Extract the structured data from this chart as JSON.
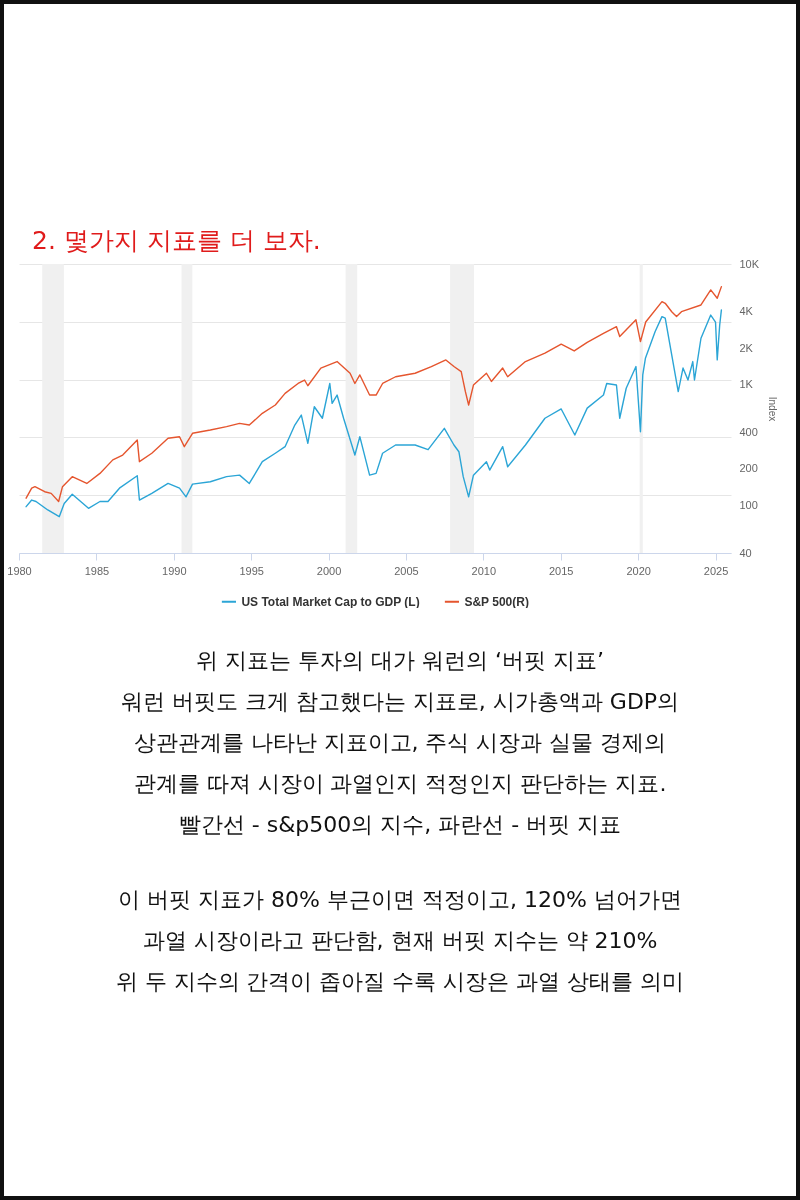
{
  "chart_data": {
    "type": "line",
    "title": "2. 몇가지 지표를 더 보자.",
    "ylabel": "Index",
    "xlim": [
      1980,
      2026
    ],
    "xticks": [
      1980,
      1985,
      1990,
      1995,
      2000,
      2005,
      2010,
      2015,
      2020,
      2025
    ],
    "ylim": [
      40,
      10000
    ],
    "yticks": [
      40,
      100,
      {
        "value": 121,
        "label": null
      },
      200,
      {
        "value": 364,
        "label": null
      },
      400,
      {
        "value": 1000,
        "label": "1K"
      },
      {
        "value": 1099,
        "label": null
      },
      {
        "value": 2000,
        "label": "2K"
      },
      {
        "value": 3315,
        "label": null
      },
      {
        "value": 4000,
        "label": "4K"
      },
      {
        "value": 10000,
        "label": "10K"
      }
    ],
    "log": true,
    "grid": "y",
    "legend": "bottom",
    "bands": [
      {
        "axis": "x",
        "from": 1981.5,
        "to": 1982.9,
        "color": "#f0f0f0"
      },
      {
        "axis": "x",
        "from": 1990.5,
        "to": 1991.2,
        "color": "#f0f0f0"
      },
      {
        "axis": "x",
        "from": 2001.1,
        "to": 2001.85,
        "color": "#f0f0f0"
      },
      {
        "axis": "x",
        "from": 2007.85,
        "to": 2009.4,
        "color": "#f0f0f0"
      },
      {
        "axis": "x",
        "from": 2020.1,
        "to": 2020.3,
        "color": "#f0f0f0"
      }
    ],
    "series": [
      {
        "name": "US Total Market Cap to GDP (L)",
        "color": "#2ba5d6",
        "x": [
          1980.46,
          1980.82,
          1981.1,
          1981.86,
          1982.6,
          1982.92,
          1983.44,
          1984.49,
          1985.23,
          1985.75,
          1986.49,
          1987.64,
          1987.78,
          1988.58,
          1989.63,
          1990.37,
          1990.79,
          1991.21,
          1992.36,
          1993.41,
          1994.25,
          1994.88,
          1995.72,
          1996.56,
          1997.19,
          1997.82,
          1998.24,
          1998.66,
          1999.08,
          1999.6,
          2000.08,
          2000.23,
          2000.55,
          2000.97,
          2001.7,
          2002.02,
          2002.65,
          2003.07,
          2003.49,
          2004.33,
          2005.59,
          2006.43,
          2007.48,
          2008.1,
          2008.42,
          2008.7,
          2009.05,
          2009.36,
          2010.2,
          2010.41,
          2011.25,
          2011.57,
          2012.72,
          2013.98,
          2015.03,
          2015.91,
          2016.71,
          2017.76,
          2017.97,
          2018.6,
          2018.81,
          2019.23,
          2019.86,
          2020.15,
          2020.3,
          2020.47,
          2021.1,
          2021.54,
          2021.75,
          2022.17,
          2022.59,
          2022.9,
          2023.22,
          2023.53,
          2023.64,
          2024.06,
          2024.69,
          2025.0,
          2025.11,
          2025.27,
          2025.38
        ],
        "values": [
          97,
          110,
          107,
          91,
          80,
          103,
          123,
          94,
          107,
          107,
          138,
          175,
          110,
          125,
          151,
          138,
          117,
          149,
          156,
          172,
          177,
          151,
          229,
          269,
          305,
          461,
          558,
          325,
          654,
          525,
          1020,
          698,
          818,
          525,
          260,
          369,
          177,
          183,
          269,
          315,
          315,
          288,
          433,
          315,
          277,
          172,
          117,
          177,
          229,
          195,
          305,
          208,
          315,
          525,
          627,
          381,
          637,
          818,
          1020,
          990,
          525,
          931,
          1410,
          406,
          1200,
          1650,
          2750,
          3660,
          3550,
          1760,
          873,
          1370,
          1090,
          1550,
          1090,
          2420,
          3770,
          3300,
          1600,
          3120,
          4160
        ]
      },
      {
        "name": "S&P 500(R)",
        "color": "#e5552e",
        "x": [
          1980.46,
          1980.82,
          1981.03,
          1981.66,
          1982.08,
          1982.56,
          1982.81,
          1983.44,
          1984.38,
          1985.23,
          1986.06,
          1986.7,
          1987.64,
          1987.78,
          1988.58,
          1989.63,
          1990.37,
          1990.68,
          1991.21,
          1992.36,
          1993.41,
          1994.25,
          1994.88,
          1995.72,
          1996.56,
          1997.19,
          1998.03,
          1998.45,
          1998.66,
          1999.5,
          2000.55,
          2001.39,
          2001.7,
          2002.02,
          2002.65,
          2003.07,
          2003.49,
          2004.33,
          2005.59,
          2006.64,
          2007.58,
          2008.1,
          2008.57,
          2008.84,
          2009.05,
          2009.36,
          2010.2,
          2010.52,
          2011.25,
          2011.57,
          2012.72,
          2013.98,
          2015.03,
          2015.87,
          2016.71,
          2017.76,
          2018.6,
          2018.81,
          2019.86,
          2020.15,
          2020.49,
          2021.54,
          2021.75,
          2022.17,
          2022.48,
          2022.8,
          2024.06,
          2024.69,
          2025.11,
          2025.38
        ],
        "values": [
          114,
          138,
          142,
          129,
          125,
          107,
          142,
          172,
          151,
          183,
          237,
          260,
          347,
          229,
          269,
          358,
          369,
          305,
          394,
          419,
          447,
          476,
          461,
          577,
          676,
          845,
          1020,
          1090,
          977,
          1370,
          1550,
          1240,
          1020,
          1200,
          818,
          818,
          1020,
          1160,
          1240,
          1410,
          1600,
          1410,
          1280,
          873,
          676,
          990,
          1240,
          1060,
          1370,
          1160,
          1550,
          1820,
          2160,
          1900,
          2240,
          2660,
          3020,
          2500,
          3440,
          2270,
          3300,
          4870,
          4720,
          4020,
          3660,
          4020,
          4570,
          6100,
          5200,
          6490
        ]
      }
    ],
    "annotations": [
      "위 지표는 투자의 대가 워런의 ‘버핏 지표’\n워런 버핏도 크게 참고했다는 지표로, 시가총액과 GDP의\n상관관계를 나타난 지표이고, 주식 시장과 실물 경제의\n관계를 따져 시장이 과열인지 적정인지 판단하는 지표.\n빨간선 - s&p500의 지수, 파란선 - 버핏 지표",
      "이 버핏 지표가 80% 부근이면 적정이고, 120% 넘어가면\n과열 시장이라고 판단함, 현재 버핏 지수는 약 210%\n위 두 지수의 간격이 좁아질 수록 시장은 과열 상태를 의미"
    ]
  }
}
